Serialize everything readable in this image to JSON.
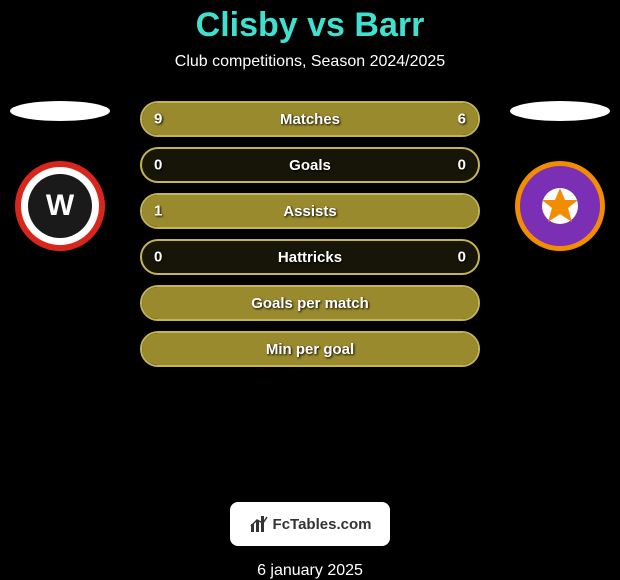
{
  "title": "Clisby vs Barr",
  "subtitle": "Club competitions, Season 2024/2025",
  "title_color": "#40e0d0",
  "text_color": "#ffffff",
  "background_color": "#000000",
  "bar_fill_color": "#9a8a2e",
  "bar_border_color": "#c4b454",
  "footer": {
    "brand": "FcTables.com",
    "date": "6 january 2025",
    "bg": "#ffffff",
    "text": "#333333"
  },
  "left_team": {
    "border_color": "#d9261c",
    "inner_bg": "#1a1a1a",
    "initials": "W",
    "icon": "club-crest-left"
  },
  "right_team": {
    "fill_color": "#7b2fb5",
    "border_color": "#f28c00",
    "icon": "club-crest-right"
  },
  "bars": [
    {
      "label": "Matches",
      "left": "9",
      "right": "6",
      "left_pct": 60,
      "right_pct": 40
    },
    {
      "label": "Goals",
      "left": "0",
      "right": "0",
      "left_pct": 0,
      "right_pct": 0
    },
    {
      "label": "Assists",
      "left": "1",
      "right": "",
      "left_pct": 100,
      "right_pct": 0
    },
    {
      "label": "Hattricks",
      "left": "0",
      "right": "0",
      "left_pct": 0,
      "right_pct": 0
    },
    {
      "label": "Goals per match",
      "left": "",
      "right": "",
      "left_pct": 100,
      "right_pct": 0
    },
    {
      "label": "Min per goal",
      "left": "",
      "right": "",
      "left_pct": 100,
      "right_pct": 0
    }
  ]
}
